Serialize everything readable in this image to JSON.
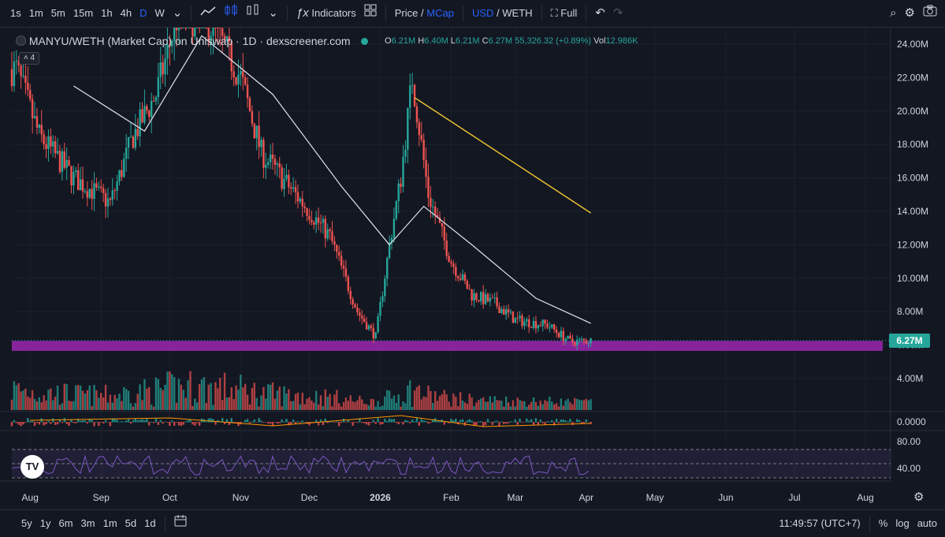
{
  "toolbar": {
    "intervals": [
      "1s",
      "1m",
      "5m",
      "15m",
      "1h",
      "4h",
      "D",
      "W"
    ],
    "active_interval": "D",
    "indicators_label": "Indicators",
    "price_label": "Price",
    "price_sep": "/",
    "mcap_label": "MCap",
    "usd_label": "USD",
    "currency_sep": "/",
    "weth_label": "WETH",
    "full_label": "Full"
  },
  "legend": {
    "title": "MANYU/WETH (Market Cap) on Uniswap · 1D · dexscreener.com",
    "o_label": "O",
    "o_value": "6.21M",
    "h_label": "H",
    "h_value": "6.40M",
    "l_label": "L",
    "l_value": "6.21M",
    "c_label": "C",
    "c_value": "6.27M",
    "change": "55,326.32 (+0.89%)",
    "vol_label": "Vol",
    "vol_value": "12.986K",
    "collapsed_count": "4"
  },
  "price_axis": {
    "ticks": [
      "24.00M",
      "22.00M",
      "20.00M",
      "18.00M",
      "16.00M",
      "14.00M",
      "12.00M",
      "10.00M",
      "8.00M",
      "6.00M",
      "4.00M"
    ],
    "current_price": "6.27M",
    "macd_tick": "0.0000",
    "rsi_ticks": [
      "80.00",
      "40.00"
    ]
  },
  "time_axis": {
    "labels": [
      "Aug",
      "Sep",
      "Oct",
      "Nov",
      "Dec",
      "2026",
      "Feb",
      "Mar",
      "Apr",
      "May",
      "Jun",
      "Jul",
      "Aug"
    ]
  },
  "bottombar": {
    "ranges": [
      "5y",
      "1y",
      "6m",
      "3m",
      "1m",
      "5d",
      "1d"
    ],
    "clock": "11:49:57 (UTC+7)",
    "percent_label": "%",
    "log_label": "log",
    "auto_label": "auto"
  },
  "colors": {
    "up": "#26a69a",
    "down": "#ef5350",
    "support_zone": "#9c27b0",
    "ma_line": "#e0e3eb",
    "trendline": "#e8c030",
    "rsi": "#7e57c2",
    "accent": "#2962ff"
  },
  "chart_data": {
    "type": "candlestick",
    "title": "MANYU/WETH (Market Cap) on Uniswap · 1D · dexscreener.com",
    "y_unit": "USD market cap",
    "ylim": [
      2000000,
      25000000
    ],
    "x_range": [
      "2025-07-24",
      "2026-08-12"
    ],
    "close_series_approx": [
      {
        "x": "2025-07-26",
        "y": 22500000
      },
      {
        "x": "2025-08-05",
        "y": 18500000
      },
      {
        "x": "2025-08-20",
        "y": 16000000
      },
      {
        "x": "2025-09-05",
        "y": 14500000
      },
      {
        "x": "2025-09-15",
        "y": 18500000
      },
      {
        "x": "2025-09-25",
        "y": 21000000
      },
      {
        "x": "2025-10-05",
        "y": 26000000
      },
      {
        "x": "2025-10-20",
        "y": 25000000
      },
      {
        "x": "2025-11-01",
        "y": 22000000
      },
      {
        "x": "2025-11-10",
        "y": 17500000
      },
      {
        "x": "2025-11-25",
        "y": 15000000
      },
      {
        "x": "2025-12-10",
        "y": 12500000
      },
      {
        "x": "2025-12-22",
        "y": 8000000
      },
      {
        "x": "2025-12-30",
        "y": 6500000
      },
      {
        "x": "2026-01-05",
        "y": 12000000
      },
      {
        "x": "2026-01-10",
        "y": 16000000
      },
      {
        "x": "2026-01-15",
        "y": 22000000
      },
      {
        "x": "2026-01-22",
        "y": 15000000
      },
      {
        "x": "2026-02-01",
        "y": 11000000
      },
      {
        "x": "2026-02-10",
        "y": 9000000
      },
      {
        "x": "2026-02-20",
        "y": 8500000
      },
      {
        "x": "2026-03-01",
        "y": 7500000
      },
      {
        "x": "2026-03-15",
        "y": 7200000
      },
      {
        "x": "2026-03-25",
        "y": 6200000
      },
      {
        "x": "2026-04-02",
        "y": 6270000
      }
    ],
    "last": {
      "open": 6210000,
      "high": 6400000,
      "low": 6210000,
      "close": 6270000,
      "change": 55326.32,
      "change_pct": 0.89,
      "volume": 12986
    },
    "support_zone": [
      5650000,
      6250000
    ],
    "trendline": [
      {
        "x": "2026-01-16",
        "y": 20800000
      },
      {
        "x": "2026-04-03",
        "y": 13900000
      }
    ],
    "ma_series_approx": [
      {
        "x": "2025-08-20",
        "y": 21500000
      },
      {
        "x": "2025-09-20",
        "y": 18800000
      },
      {
        "x": "2025-10-15",
        "y": 24500000
      },
      {
        "x": "2025-11-15",
        "y": 21000000
      },
      {
        "x": "2025-12-15",
        "y": 15500000
      },
      {
        "x": "2026-01-05",
        "y": 12000000
      },
      {
        "x": "2026-01-20",
        "y": 14300000
      },
      {
        "x": "2026-02-10",
        "y": 12000000
      },
      {
        "x": "2026-03-10",
        "y": 8800000
      },
      {
        "x": "2026-04-03",
        "y": 7300000
      }
    ]
  }
}
